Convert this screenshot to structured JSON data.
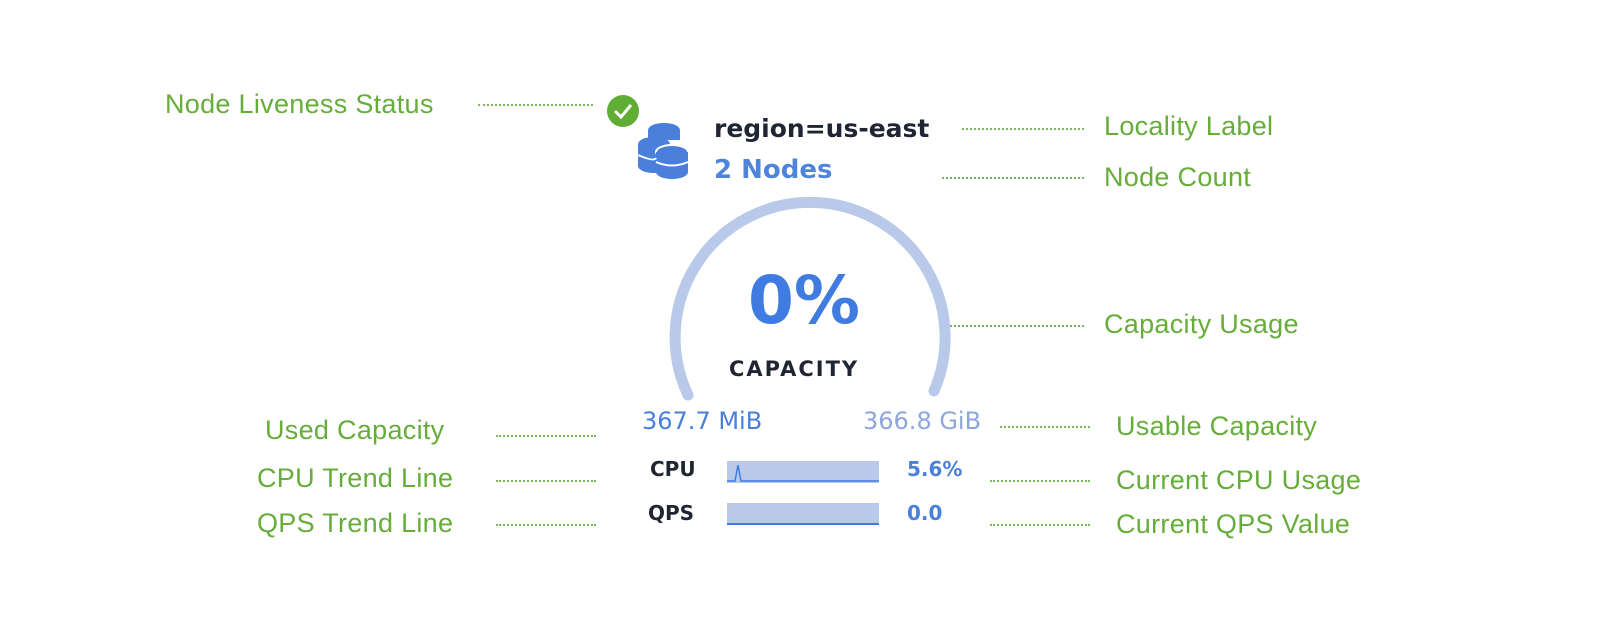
{
  "widget": {
    "locality": "region=us-east",
    "node_count": "2 Nodes",
    "capacity_percent": "0%",
    "capacity_label": "CAPACITY",
    "capacity_fraction": 0,
    "used_capacity": "367.7 MiB",
    "usable_capacity": "366.8 GiB",
    "cpu_label": "CPU",
    "cpu_value": "5.6%",
    "qps_label": "QPS",
    "qps_value": "0.0",
    "liveness_icon": "check-circle-icon",
    "node_icon": "database-stack-icon",
    "colors": {
      "accent": "#4a80dc",
      "gauge": "#b8c9ea",
      "live": "#5fae33",
      "annotation": "#66ad3a"
    }
  },
  "annotations": {
    "liveness": "Node Liveness Status",
    "locality": "Locality Label",
    "node_count": "Node Count",
    "capacity_usage": "Capacity Usage",
    "used_capacity": "Used Capacity",
    "usable_capacity": "Usable Capacity",
    "cpu_trend": "CPU Trend Line",
    "cpu_current": "Current CPU Usage",
    "qps_trend": "QPS Trend Line",
    "qps_current": "Current QPS Value"
  }
}
